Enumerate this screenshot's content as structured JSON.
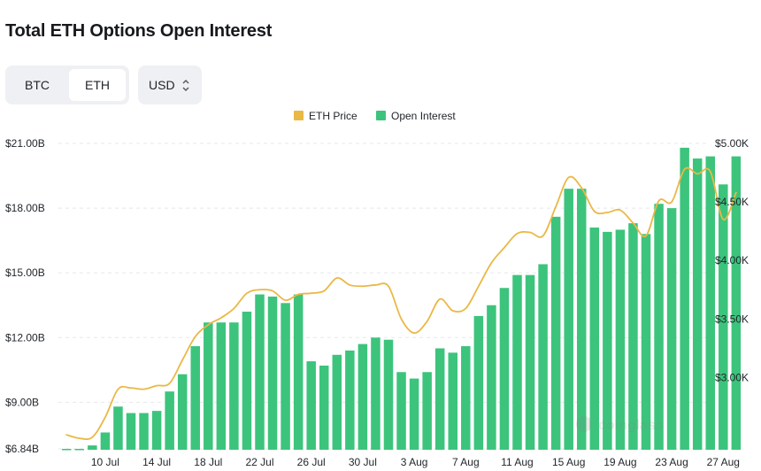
{
  "header": {
    "title": "Total ETH Options Open Interest"
  },
  "controls": {
    "asset_options": [
      "BTC",
      "ETH"
    ],
    "asset_selected": "ETH",
    "currency": "USD",
    "currency_icon": "chevron-updown-icon"
  },
  "colors": {
    "bars": "#3cc47c",
    "price_line": "#eab845",
    "grid": "#e6e8eb",
    "selected_bg": "#ffffff"
  },
  "chart_data": {
    "type": "bar",
    "title": "Total ETH Options Open Interest",
    "series": [
      {
        "name": "Open Interest",
        "axis": "left",
        "style": "bar",
        "values": [
          6.84,
          6.84,
          7.0,
          7.6,
          8.8,
          8.5,
          8.5,
          8.6,
          9.5,
          10.3,
          11.6,
          12.7,
          12.7,
          12.7,
          13.2,
          14.0,
          13.9,
          13.6,
          14.0,
          10.9,
          10.7,
          11.2,
          11.4,
          11.7,
          12.0,
          11.9,
          10.4,
          10.1,
          10.4,
          11.5,
          11.3,
          11.6,
          13.0,
          13.5,
          14.3,
          14.9,
          14.9,
          15.4,
          17.6,
          18.9,
          18.9,
          17.1,
          16.9,
          17.0,
          17.3,
          16.8,
          18.2,
          18.0,
          20.8,
          20.3,
          20.4,
          19.1,
          20.4
        ]
      },
      {
        "name": "ETH Price",
        "axis": "right",
        "style": "line",
        "values": [
          2510,
          2480,
          2490,
          2660,
          2900,
          2910,
          2900,
          2930,
          2950,
          3150,
          3350,
          3450,
          3510,
          3590,
          3720,
          3750,
          3740,
          3660,
          3710,
          3720,
          3740,
          3850,
          3790,
          3780,
          3790,
          3780,
          3500,
          3380,
          3480,
          3670,
          3570,
          3590,
          3780,
          3980,
          4110,
          4230,
          4240,
          4210,
          4460,
          4710,
          4620,
          4420,
          4410,
          4430,
          4320,
          4210,
          4510,
          4500,
          4780,
          4740,
          4760,
          4350,
          4580
        ]
      }
    ],
    "x_tick_labels": [
      "10 Jul",
      "14 Jul",
      "18 Jul",
      "22 Jul",
      "26 Jul",
      "30 Jul",
      "3 Aug",
      "7 Aug",
      "11 Aug",
      "15 Aug",
      "19 Aug",
      "23 Aug",
      "27 Aug"
    ],
    "x_tick_indices": [
      3,
      7,
      11,
      15,
      19,
      23,
      27,
      31,
      35,
      39,
      43,
      47,
      51
    ],
    "y_left": {
      "tick_values": [
        6.84,
        9.0,
        12.0,
        15.0,
        18.0,
        21.0
      ],
      "tick_labels": [
        "$6.84B",
        "$9.00B",
        "$12.00B",
        "$15.00B",
        "$18.00B",
        "$21.00B"
      ],
      "range": [
        6.84,
        21.0
      ]
    },
    "y_right": {
      "tick_values": [
        3000,
        3500,
        4000,
        4500,
        5000
      ],
      "tick_labels": [
        "$3.00K",
        "$3.50K",
        "$4.00K",
        "$4.50K",
        "$5.00K"
      ],
      "range": [
        2390,
        5000
      ]
    },
    "legend": [
      "ETH Price",
      "Open Interest"
    ],
    "legend_position": "top-center",
    "grid": true
  }
}
